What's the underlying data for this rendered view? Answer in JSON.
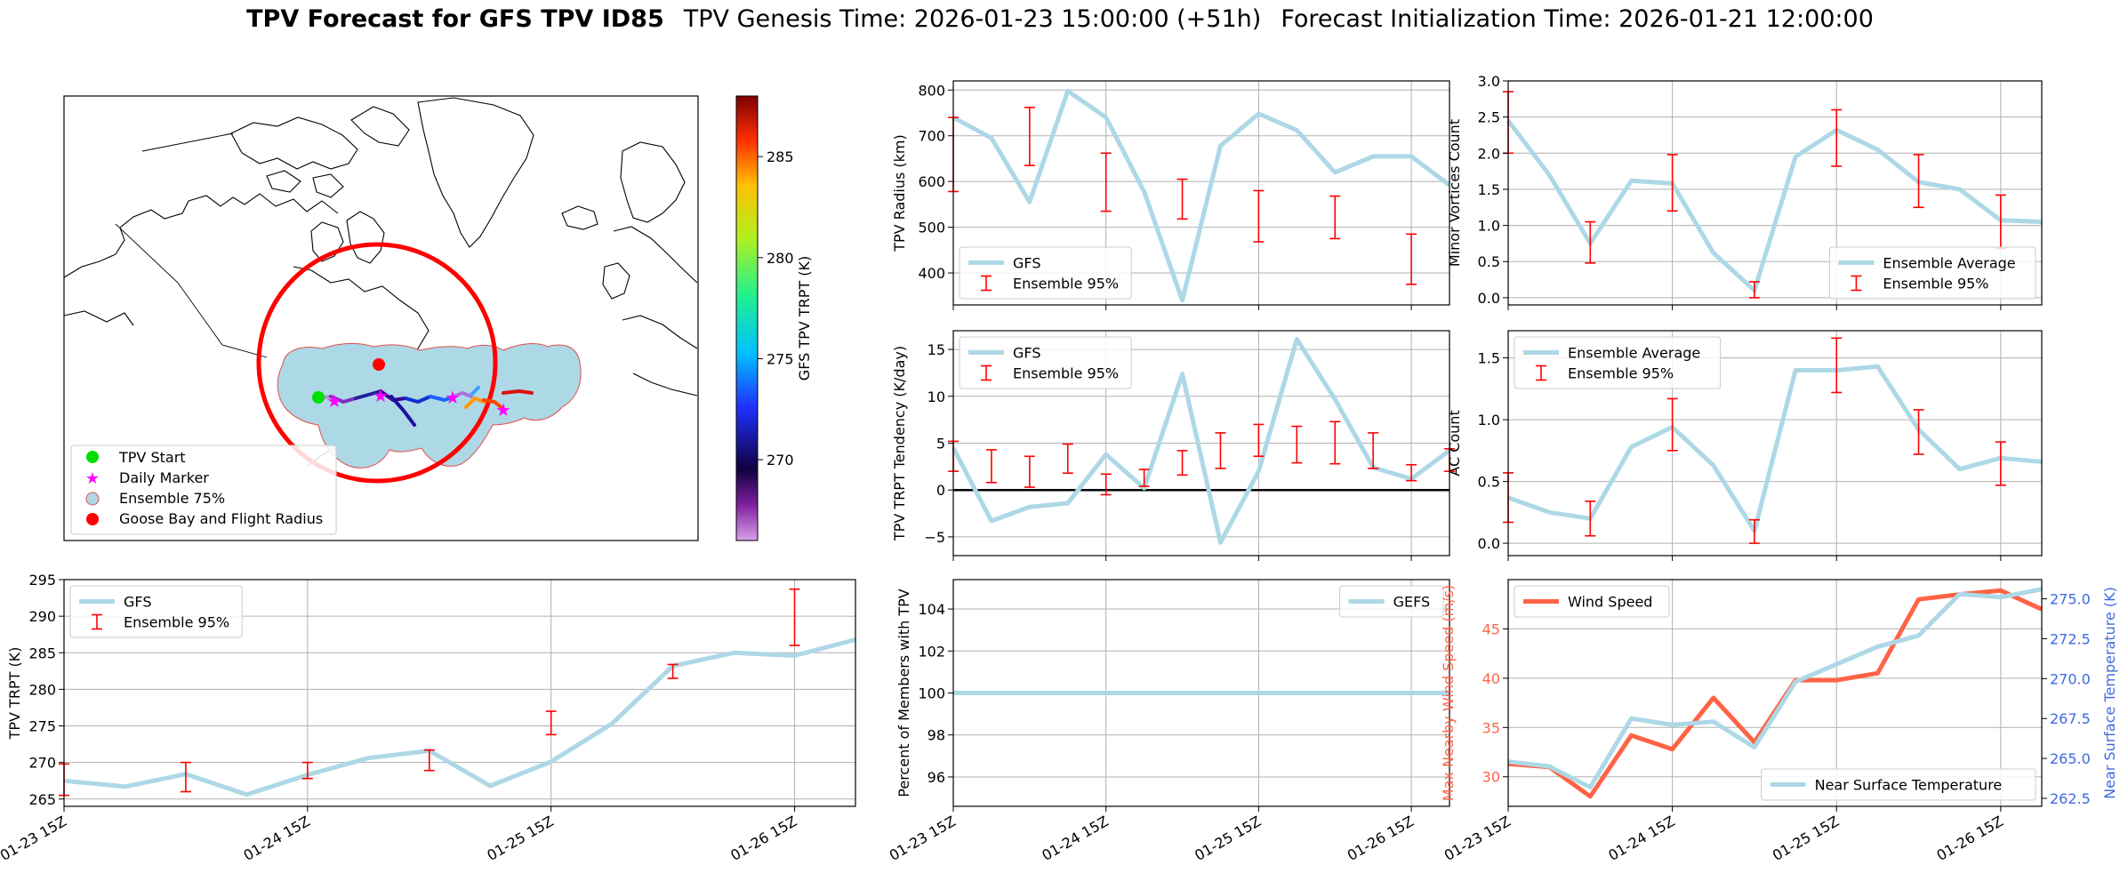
{
  "title": {
    "main": "TPV Forecast for GFS TPV ID85",
    "genesis": "TPV Genesis Time: 2026-01-23 15:00:00 (+51h)",
    "init": "Forecast Initialization Time: 2026-01-21 12:00:00"
  },
  "colors": {
    "gfs_line": "#add8e6",
    "error_bar": "#ff0000",
    "wind": "#ff6347",
    "temp_axis": "#4169e1",
    "ensemble_fill": "#add8e6"
  },
  "chart_data": [
    {
      "id": "map",
      "type": "map",
      "colorbar": {
        "label": "GFS TPV TRPT (K)",
        "ticks": [
          "270",
          "275",
          "280",
          "285"
        ],
        "range": [
          266,
          288
        ]
      },
      "legend": [
        "TPV Start",
        "Daily Marker",
        "Ensemble 75%",
        "Goose Bay and Flight Radius"
      ]
    },
    {
      "id": "radius",
      "type": "line",
      "ylabel": "TPV Radius (km)",
      "ylim": [
        330,
        820
      ],
      "yticks": [
        "400",
        "500",
        "600",
        "700",
        "800"
      ],
      "xlim": [
        0,
        3.25
      ],
      "xtick_pos": [
        0,
        1,
        2,
        3
      ],
      "xticklabels": [
        "01-23 15Z",
        "01-24 15Z",
        "01-25 15Z",
        "01-26 15Z"
      ],
      "legend": [
        "GFS",
        "Ensemble 95%"
      ],
      "legend_loc": "lower-left",
      "series": [
        {
          "name": "GFS",
          "x": [
            0,
            0.25,
            0.5,
            0.75,
            1,
            1.25,
            1.5,
            1.75,
            2,
            2.25,
            2.5,
            2.75,
            3,
            3.25
          ],
          "values": [
            740,
            695,
            555,
            798,
            740,
            578,
            340,
            678,
            748,
            712,
            620,
            655,
            655,
            592
          ]
        }
      ],
      "errorbars": [
        {
          "x": 0,
          "lo": 578,
          "hi": 740
        },
        {
          "x": 0.5,
          "lo": 635,
          "hi": 762
        },
        {
          "x": 1,
          "lo": 535,
          "hi": 662
        },
        {
          "x": 1.5,
          "lo": 518,
          "hi": 605
        },
        {
          "x": 2,
          "lo": 468,
          "hi": 580
        },
        {
          "x": 2.5,
          "lo": 475,
          "hi": 568
        },
        {
          "x": 3,
          "lo": 375,
          "hi": 485
        }
      ]
    },
    {
      "id": "minor",
      "type": "line",
      "ylabel": "Minor Vortices Count",
      "ylim": [
        -0.1,
        3.0
      ],
      "yticks": [
        "0.0",
        "0.5",
        "1.0",
        "1.5",
        "2.0",
        "2.5",
        "3.0"
      ],
      "xlim": [
        0,
        3.25
      ],
      "xtick_pos": [
        0,
        1,
        2,
        3
      ],
      "xticklabels": [
        "01-23 15Z",
        "01-24 15Z",
        "01-25 15Z",
        "01-26 15Z"
      ],
      "legend": [
        "Ensemble Average",
        "Ensemble 95%"
      ],
      "legend_loc": "lower-right",
      "series": [
        {
          "name": "Ensemble Average",
          "x": [
            0,
            0.25,
            0.5,
            0.75,
            1,
            1.25,
            1.5,
            1.75,
            2,
            2.25,
            2.5,
            2.75,
            3,
            3.25
          ],
          "values": [
            2.45,
            1.7,
            0.75,
            1.62,
            1.58,
            0.62,
            0.1,
            1.95,
            2.32,
            2.05,
            1.6,
            1.5,
            1.07,
            1.05
          ]
        }
      ],
      "errorbars": [
        {
          "x": 0,
          "lo": 2.0,
          "hi": 2.85
        },
        {
          "x": 0.5,
          "lo": 0.48,
          "hi": 1.05
        },
        {
          "x": 1,
          "lo": 1.2,
          "hi": 1.98
        },
        {
          "x": 1.5,
          "lo": 0.0,
          "hi": 0.22
        },
        {
          "x": 2,
          "lo": 1.82,
          "hi": 2.6
        },
        {
          "x": 2.5,
          "lo": 1.25,
          "hi": 1.98
        },
        {
          "x": 3,
          "lo": 0.68,
          "hi": 1.42
        }
      ]
    },
    {
      "id": "tendency",
      "type": "line",
      "ylabel": "TPV TRPT Tendency (K/day)",
      "ylim": [
        -7,
        17
      ],
      "yticks": [
        "−5",
        "0",
        "5",
        "10",
        "15"
      ],
      "xlim": [
        0,
        3.25
      ],
      "xtick_pos": [
        0,
        1,
        2,
        3
      ],
      "xticklabels": [
        "01-23 15Z",
        "01-24 15Z",
        "01-25 15Z",
        "01-26 15Z"
      ],
      "legend": [
        "GFS",
        "Ensemble 95%"
      ],
      "legend_loc": "top-left",
      "zero_line": true,
      "series": [
        {
          "name": "GFS",
          "x": [
            0,
            0.25,
            0.5,
            0.75,
            1,
            1.25,
            1.5,
            1.75,
            2,
            2.25,
            2.5,
            2.75,
            3,
            3.25
          ],
          "values": [
            4.5,
            -3.3,
            -1.8,
            -1.4,
            3.8,
            0.2,
            12.4,
            -5.6,
            2.0,
            16.1,
            9.7,
            2.4,
            1.2,
            4.2
          ]
        }
      ],
      "errorbars": [
        {
          "x": 0,
          "lo": 2.0,
          "hi": 5.2
        },
        {
          "x": 0.25,
          "lo": 0.8,
          "hi": 4.3
        },
        {
          "x": 0.5,
          "lo": 0.3,
          "hi": 3.6
        },
        {
          "x": 0.75,
          "lo": 1.8,
          "hi": 4.9
        },
        {
          "x": 1,
          "lo": -0.5,
          "hi": 1.7
        },
        {
          "x": 1.25,
          "lo": 0.4,
          "hi": 2.2
        },
        {
          "x": 1.5,
          "lo": 1.6,
          "hi": 4.2
        },
        {
          "x": 1.75,
          "lo": 2.3,
          "hi": 6.1
        },
        {
          "x": 2,
          "lo": 3.6,
          "hi": 7.0
        },
        {
          "x": 2.25,
          "lo": 2.9,
          "hi": 6.8
        },
        {
          "x": 2.5,
          "lo": 2.8,
          "hi": 7.3
        },
        {
          "x": 2.75,
          "lo": 2.3,
          "hi": 6.1
        },
        {
          "x": 3,
          "lo": 1.0,
          "hi": 2.7
        },
        {
          "x": 3.25,
          "lo": 2.0,
          "hi": 4.4
        }
      ]
    },
    {
      "id": "ac",
      "type": "line",
      "ylabel": "AC Count",
      "ylim": [
        -0.1,
        1.72
      ],
      "yticks": [
        "0.0",
        "0.5",
        "1.0",
        "1.5"
      ],
      "xlim": [
        0,
        3.25
      ],
      "xtick_pos": [
        0,
        1,
        2,
        3
      ],
      "xticklabels": [
        "01-23 15Z",
        "01-24 15Z",
        "01-25 15Z",
        "01-26 15Z"
      ],
      "legend": [
        "Ensemble Average",
        "Ensemble 95%"
      ],
      "legend_loc": "top-left",
      "series": [
        {
          "name": "Ensemble Average",
          "x": [
            0,
            0.25,
            0.5,
            0.75,
            1,
            1.25,
            1.5,
            1.75,
            2,
            2.25,
            2.5,
            2.75,
            3,
            3.25
          ],
          "values": [
            0.37,
            0.25,
            0.2,
            0.78,
            0.94,
            0.63,
            0.1,
            1.4,
            1.4,
            1.43,
            0.92,
            0.6,
            0.69,
            0.66
          ]
        }
      ],
      "errorbars": [
        {
          "x": 0,
          "lo": 0.17,
          "hi": 0.57
        },
        {
          "x": 0.5,
          "lo": 0.06,
          "hi": 0.34
        },
        {
          "x": 1,
          "lo": 0.75,
          "hi": 1.17
        },
        {
          "x": 1.5,
          "lo": 0.0,
          "hi": 0.19
        },
        {
          "x": 2,
          "lo": 1.22,
          "hi": 1.66
        },
        {
          "x": 2.5,
          "lo": 0.72,
          "hi": 1.08
        },
        {
          "x": 3,
          "lo": 0.47,
          "hi": 0.82
        }
      ]
    },
    {
      "id": "trpt",
      "type": "line",
      "ylabel": "TPV TRPT (K)",
      "ylim": [
        264,
        295
      ],
      "yticks": [
        "265",
        "270",
        "275",
        "280",
        "285",
        "290",
        "295"
      ],
      "xlim": [
        0,
        3.25
      ],
      "xtick_pos": [
        0,
        1,
        2,
        3
      ],
      "xticklabels": [
        "01-23 15Z",
        "01-24 15Z",
        "01-25 15Z",
        "01-26 15Z"
      ],
      "legend": [
        "GFS",
        "Ensemble 95%"
      ],
      "legend_loc": "top-left",
      "series": [
        {
          "name": "GFS",
          "x": [
            0,
            0.25,
            0.5,
            0.75,
            1,
            1.25,
            1.5,
            1.75,
            2,
            2.25,
            2.5,
            2.75,
            3,
            3.25
          ],
          "values": [
            267.5,
            266.7,
            268.4,
            265.6,
            268.3,
            270.6,
            271.6,
            266.8,
            270.1,
            275.3,
            283.2,
            285.0,
            284.6,
            286.8
          ]
        }
      ],
      "errorbars": [
        {
          "x": 0,
          "lo": 265.5,
          "hi": 269.8
        },
        {
          "x": 0.5,
          "lo": 266.0,
          "hi": 270.0
        },
        {
          "x": 1,
          "lo": 267.8,
          "hi": 270.0
        },
        {
          "x": 1.5,
          "lo": 268.9,
          "hi": 271.7
        },
        {
          "x": 2,
          "lo": 273.8,
          "hi": 277.0
        },
        {
          "x": 2.5,
          "lo": 281.5,
          "hi": 283.4
        },
        {
          "x": 3,
          "lo": 286.0,
          "hi": 293.7
        }
      ]
    },
    {
      "id": "members",
      "type": "line",
      "ylabel": "Percent of Members with TPV",
      "ylim": [
        94.6,
        105.4
      ],
      "yticks": [
        "96",
        "98",
        "100",
        "102",
        "104"
      ],
      "xlim": [
        0,
        3.25
      ],
      "xtick_pos": [
        0,
        1,
        2,
        3
      ],
      "xticklabels": [
        "01-23 15Z",
        "01-24 15Z",
        "01-25 15Z",
        "01-26 15Z"
      ],
      "legend": [
        "GEFS"
      ],
      "legend_loc": "top-right",
      "series": [
        {
          "name": "GEFS",
          "x": [
            0,
            3.25
          ],
          "values": [
            100,
            100
          ]
        }
      ]
    },
    {
      "id": "wind",
      "type": "line",
      "ylabel": "Max Nearby Wind Speed (m/s)",
      "ylabel_right": "Near Surface Temperature (K)",
      "ylim": [
        27,
        50
      ],
      "yticks": [
        "30",
        "35",
        "40",
        "45"
      ],
      "ylim_right": [
        262.0,
        276.2
      ],
      "yticks_right": [
        "262.5",
        "265.0",
        "267.5",
        "270.0",
        "272.5",
        "275.0"
      ],
      "xlim": [
        0,
        3.25
      ],
      "xtick_pos": [
        0,
        1,
        2,
        3
      ],
      "xticklabels": [
        "01-23 15Z",
        "01-24 15Z",
        "01-25 15Z",
        "01-26 15Z"
      ],
      "legend": [
        "Wind Speed"
      ],
      "legend_right": [
        "Near Surface Temperature"
      ],
      "series": [
        {
          "name": "Wind Speed",
          "axis": "left",
          "x": [
            0,
            0.25,
            0.5,
            0.75,
            1,
            1.25,
            1.5,
            1.75,
            2,
            2.25,
            2.5,
            2.75,
            3,
            3.25
          ],
          "values": [
            31.3,
            31.0,
            28.0,
            34.2,
            32.8,
            38.0,
            33.5,
            39.8,
            39.8,
            40.5,
            48.0,
            48.5,
            48.9,
            47.0
          ]
        },
        {
          "name": "Near Surface Temperature",
          "axis": "right",
          "x": [
            0,
            0.25,
            0.5,
            0.75,
            1,
            1.25,
            1.5,
            1.75,
            2,
            2.25,
            2.5,
            2.75,
            3,
            3.25
          ],
          "values": [
            264.8,
            264.5,
            263.2,
            267.5,
            267.1,
            267.3,
            265.7,
            269.8,
            270.9,
            272.0,
            272.7,
            275.3,
            275.1,
            275.6
          ]
        }
      ]
    }
  ]
}
